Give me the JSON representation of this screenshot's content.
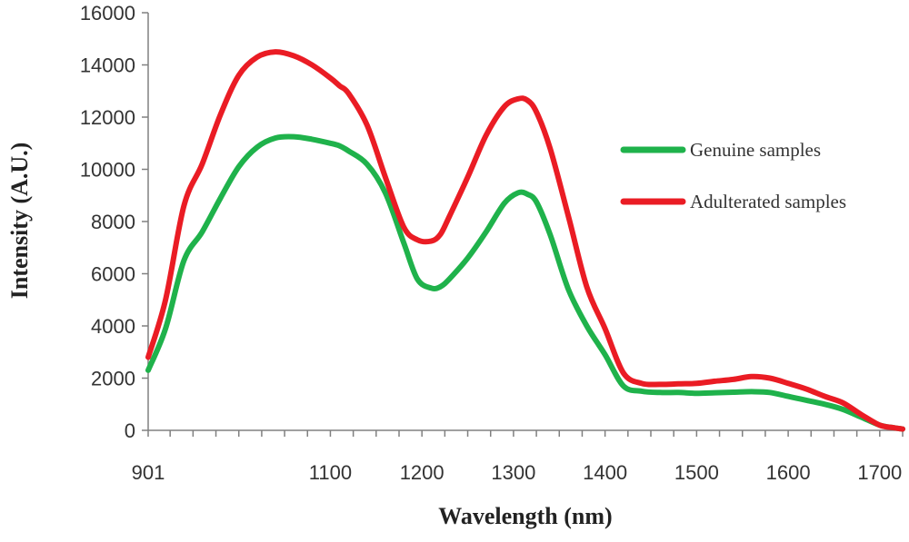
{
  "chart_data": {
    "type": "line",
    "title": "",
    "xlabel": "Wavelength (nm)",
    "ylabel": "Intensity (A.U.)",
    "xlim": [
      901,
      1725
    ],
    "ylim": [
      0,
      16000
    ],
    "x_tick_labels": [
      "901",
      "1100",
      "1200",
      "1300",
      "1400",
      "1500",
      "1600",
      "1700"
    ],
    "x_tick_values": [
      901,
      1100,
      1200,
      1300,
      1400,
      1500,
      1600,
      1700
    ],
    "y_ticks": [
      0,
      2000,
      4000,
      6000,
      8000,
      10000,
      12000,
      14000,
      16000
    ],
    "grid": false,
    "legend_position": "right",
    "series": [
      {
        "name": "Genuine samples",
        "color": "#1fb24b",
        "x": [
          901,
          920,
          940,
          960,
          980,
          1000,
          1020,
          1040,
          1060,
          1080,
          1100,
          1110,
          1120,
          1140,
          1160,
          1180,
          1195,
          1210,
          1220,
          1230,
          1250,
          1270,
          1290,
          1305,
          1315,
          1325,
          1340,
          1360,
          1380,
          1400,
          1420,
          1440,
          1460,
          1480,
          1500,
          1520,
          1540,
          1560,
          1580,
          1600,
          1620,
          1640,
          1660,
          1680,
          1700,
          1715,
          1725
        ],
        "y": [
          2300,
          3900,
          6500,
          7600,
          8900,
          10100,
          10850,
          11200,
          11250,
          11150,
          11000,
          10900,
          10700,
          10200,
          9100,
          7200,
          5800,
          5450,
          5500,
          5800,
          6600,
          7600,
          8700,
          9100,
          9050,
          8750,
          7500,
          5400,
          4000,
          2900,
          1700,
          1500,
          1450,
          1450,
          1420,
          1440,
          1460,
          1480,
          1450,
          1300,
          1150,
          1000,
          800,
          500,
          200,
          100,
          50
        ]
      },
      {
        "name": "Adulterated samples",
        "color": "#ea1c24",
        "x": [
          901,
          920,
          940,
          960,
          980,
          1000,
          1020,
          1040,
          1060,
          1080,
          1100,
          1110,
          1120,
          1140,
          1160,
          1180,
          1195,
          1210,
          1220,
          1230,
          1250,
          1270,
          1290,
          1305,
          1315,
          1325,
          1340,
          1360,
          1380,
          1400,
          1420,
          1440,
          1460,
          1480,
          1500,
          1520,
          1540,
          1560,
          1580,
          1600,
          1620,
          1640,
          1660,
          1680,
          1700,
          1715,
          1725
        ],
        "y": [
          2800,
          5000,
          8600,
          10200,
          12100,
          13600,
          14300,
          14500,
          14350,
          14000,
          13500,
          13200,
          12900,
          11700,
          9700,
          7800,
          7300,
          7250,
          7500,
          8200,
          9700,
          11300,
          12400,
          12700,
          12650,
          12200,
          10800,
          8200,
          5500,
          3900,
          2200,
          1800,
          1760,
          1780,
          1800,
          1880,
          1950,
          2060,
          2000,
          1800,
          1580,
          1300,
          1050,
          600,
          200,
          100,
          50
        ]
      }
    ]
  }
}
